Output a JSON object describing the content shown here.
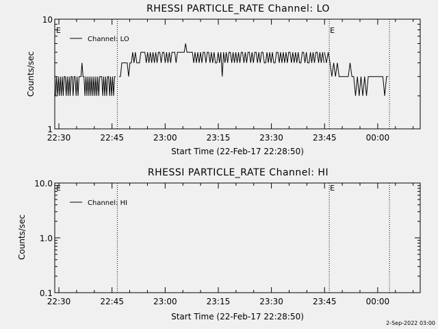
{
  "chart_data": [
    {
      "type": "line",
      "title": "RHESSI PARTICLE_RATE Channel: LO",
      "xlabel": "Start Time (22-Feb-17 22:28:50)",
      "ylabel": "Counts/sec",
      "yscale": "log",
      "ylim": [
        1,
        10
      ],
      "yticks": [
        "1",
        "10"
      ],
      "xlim": [
        "22:28:50",
        "00:12:00"
      ],
      "xticks": [
        "22:30",
        "22:45",
        "23:00",
        "23:15",
        "23:30",
        "23:45",
        "00:00"
      ],
      "legend": {
        "position": "top-left",
        "entries": [
          "Channel: LO"
        ]
      },
      "event_lines": [
        {
          "time": "22:46:30",
          "label": ""
        },
        {
          "time": "23:46:20",
          "label": "E"
        },
        {
          "time": "00:03:20",
          "label": ""
        }
      ],
      "left_marker": "E",
      "series": [
        {
          "name": "Channel: LO",
          "segments": [
            {
              "start": "22:29:00",
              "end": "22:46:00",
              "values": [
                2,
                3,
                2,
                3,
                2,
                3,
                2,
                3,
                2,
                3,
                3,
                2,
                3,
                2,
                3,
                2,
                3,
                3,
                2,
                3,
                3,
                2,
                3,
                2,
                3,
                3,
                3,
                4,
                3,
                3,
                2,
                3,
                2,
                3,
                2,
                3,
                2,
                3,
                2,
                3,
                2,
                3,
                2,
                3,
                2,
                3,
                3,
                3,
                2,
                3,
                2,
                3,
                2,
                3,
                3,
                2,
                3,
                2,
                3,
                2,
                3,
                3
              ]
            },
            {
              "start": "22:47:00",
              "end": "23:44:50",
              "values": [
                3,
                3,
                4,
                4,
                4,
                4,
                4,
                3,
                4,
                4,
                5,
                4,
                5,
                4,
                4,
                4,
                5,
                5,
                5,
                5,
                4,
                5,
                4,
                5,
                4,
                5,
                4,
                5,
                4,
                5,
                5,
                4,
                5,
                5,
                4,
                5,
                4,
                5,
                4,
                5,
                5,
                5,
                4,
                5,
                5,
                5,
                5,
                5,
                5,
                6,
                5,
                5,
                5,
                5,
                5,
                4,
                5,
                4,
                5,
                4,
                5,
                4,
                5,
                5,
                4,
                5,
                5,
                4,
                5,
                4,
                5,
                4,
                4,
                5,
                4,
                5,
                3,
                5,
                4,
                5,
                4,
                5,
                5,
                4,
                5,
                4,
                5,
                4,
                5,
                4,
                5,
                5,
                4,
                5,
                4,
                5,
                5,
                4,
                5,
                4,
                5,
                5,
                4,
                5,
                4,
                5,
                5,
                4,
                4,
                5,
                4,
                5,
                4,
                5,
                4,
                4,
                5,
                5,
                4,
                5,
                4,
                5,
                4,
                5,
                4,
                5,
                5,
                4,
                5,
                4,
                5,
                4,
                5,
                4,
                4,
                5,
                5,
                4,
                5,
                4,
                4,
                5,
                4,
                5,
                4,
                5,
                5,
                4,
                5,
                4,
                5,
                4
              ]
            },
            {
              "start": "23:45:00",
              "end": "00:03:00",
              "values": [
                5,
                4,
                5,
                4,
                3,
                4,
                3,
                4,
                3,
                3,
                3,
                3,
                3,
                3,
                4,
                3,
                3,
                2,
                3,
                2,
                3,
                2,
                3,
                2,
                3,
                3,
                3,
                3,
                3,
                3,
                3,
                3,
                3,
                2,
                3,
                3
              ]
            }
          ]
        }
      ]
    },
    {
      "type": "line",
      "title": "RHESSI PARTICLE_RATE Channel: HI",
      "xlabel": "Start Time (22-Feb-17 22:28:50)",
      "ylabel": "Counts/sec",
      "yscale": "log",
      "ylim": [
        0.1,
        10
      ],
      "yticks": [
        "0.1",
        "1.0",
        "10.0"
      ],
      "xlim": [
        "22:28:50",
        "00:12:00"
      ],
      "xticks": [
        "22:30",
        "22:45",
        "23:00",
        "23:15",
        "23:30",
        "23:45",
        "00:00"
      ],
      "legend": {
        "position": "top-left",
        "entries": [
          "Channel: HI"
        ]
      },
      "event_lines": [
        {
          "time": "22:46:30",
          "label": ""
        },
        {
          "time": "23:46:20",
          "label": "E"
        },
        {
          "time": "00:03:20",
          "label": ""
        }
      ],
      "left_marker": "E",
      "series": [
        {
          "name": "Channel: HI",
          "segments": []
        }
      ]
    }
  ],
  "footer": {
    "timestamp": "2-Sep-2022 03:00"
  }
}
